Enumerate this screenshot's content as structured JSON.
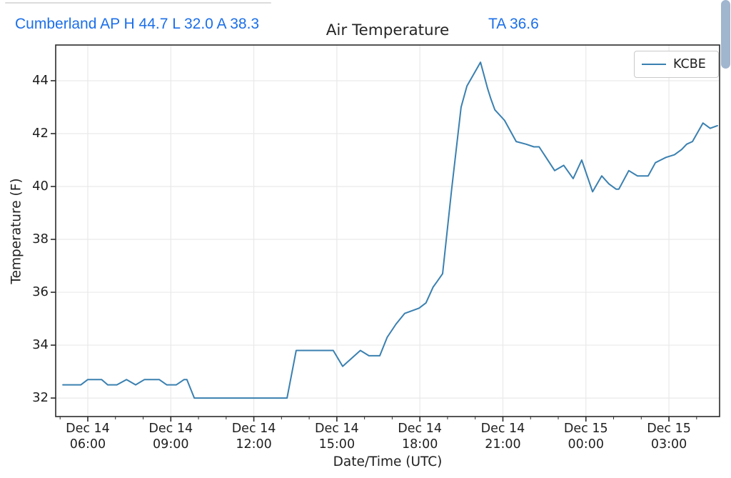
{
  "header": {
    "station_summary": "Cumberland AP H 44.7 L 32.0 A 38.3",
    "ta_value": "TA 36.6",
    "station": "Cumberland AP",
    "high": "44.7",
    "low": "32.0",
    "average": "38.3",
    "current_ta": "36.6",
    "accent_color": "#1b6fe8"
  },
  "chart_data": {
    "type": "line",
    "title": "Air Temperature",
    "xlabel": "Date/Time (UTC)",
    "ylabel": "Temperature (F)",
    "grid": true,
    "legend_position": "upper right",
    "legend_entries": [
      {
        "label": "KCBE",
        "color": "#3a80b0"
      }
    ],
    "ylim": [
      31.3,
      45.35
    ],
    "xlim_hours": [
      4.84,
      28.83
    ],
    "y_ticks": [
      32,
      34,
      36,
      38,
      40,
      42,
      44
    ],
    "x_major_ticks": [
      {
        "hour": 6,
        "line1": "Dec 14",
        "line2": "06:00"
      },
      {
        "hour": 9,
        "line1": "Dec 14",
        "line2": "09:00"
      },
      {
        "hour": 12,
        "line1": "Dec 14",
        "line2": "12:00"
      },
      {
        "hour": 15,
        "line1": "Dec 14",
        "line2": "15:00"
      },
      {
        "hour": 18,
        "line1": "Dec 14",
        "line2": "18:00"
      },
      {
        "hour": 21,
        "line1": "Dec 14",
        "line2": "21:00"
      },
      {
        "hour": 24,
        "line1": "Dec 15",
        "line2": "00:00"
      },
      {
        "hour": 27,
        "line1": "Dec 15",
        "line2": "03:00"
      }
    ],
    "x_minor_tick_hours": [
      5,
      7,
      8,
      10,
      11,
      13,
      14,
      16,
      17,
      19,
      20,
      22,
      23,
      25,
      26,
      28
    ],
    "series": [
      {
        "name": "KCBE",
        "color": "#3a80b0",
        "x_unit": "hours since Dec 14 00:00 UTC",
        "points": [
          [
            5.1,
            32.5
          ],
          [
            5.75,
            32.5
          ],
          [
            6.0,
            32.7
          ],
          [
            6.5,
            32.7
          ],
          [
            6.72,
            32.5
          ],
          [
            7.05,
            32.5
          ],
          [
            7.4,
            32.7
          ],
          [
            7.73,
            32.5
          ],
          [
            8.05,
            32.7
          ],
          [
            8.58,
            32.7
          ],
          [
            8.85,
            32.5
          ],
          [
            9.2,
            32.5
          ],
          [
            9.48,
            32.7
          ],
          [
            9.58,
            32.7
          ],
          [
            9.85,
            32.0
          ],
          [
            13.2,
            32.0
          ],
          [
            13.53,
            33.8
          ],
          [
            14.87,
            33.8
          ],
          [
            15.21,
            33.2
          ],
          [
            15.85,
            33.8
          ],
          [
            16.16,
            33.6
          ],
          [
            16.55,
            33.6
          ],
          [
            16.82,
            34.3
          ],
          [
            17.14,
            34.8
          ],
          [
            17.45,
            35.2
          ],
          [
            17.97,
            35.4
          ],
          [
            18.22,
            35.6
          ],
          [
            18.48,
            36.2
          ],
          [
            18.62,
            36.4
          ],
          [
            18.82,
            36.7
          ],
          [
            19.15,
            39.9
          ],
          [
            19.49,
            43.0
          ],
          [
            19.7,
            43.8
          ],
          [
            20.19,
            44.7
          ],
          [
            20.45,
            43.7
          ],
          [
            20.57,
            43.3
          ],
          [
            20.71,
            42.9
          ],
          [
            21.06,
            42.5
          ],
          [
            21.48,
            41.7
          ],
          [
            21.84,
            41.6
          ],
          [
            22.12,
            41.5
          ],
          [
            22.31,
            41.5
          ],
          [
            22.87,
            40.6
          ],
          [
            23.2,
            40.8
          ],
          [
            23.54,
            40.3
          ],
          [
            23.85,
            41.0
          ],
          [
            24.24,
            39.8
          ],
          [
            24.57,
            40.4
          ],
          [
            24.83,
            40.1
          ],
          [
            25.09,
            39.9
          ],
          [
            25.19,
            39.9
          ],
          [
            25.55,
            40.6
          ],
          [
            25.86,
            40.4
          ],
          [
            26.25,
            40.4
          ],
          [
            26.51,
            40.9
          ],
          [
            26.7,
            41.0
          ],
          [
            26.89,
            41.1
          ],
          [
            27.2,
            41.2
          ],
          [
            27.46,
            41.4
          ],
          [
            27.64,
            41.6
          ],
          [
            27.85,
            41.7
          ],
          [
            28.23,
            42.4
          ],
          [
            28.49,
            42.2
          ],
          [
            28.75,
            42.3
          ]
        ]
      }
    ],
    "style": {
      "grid_color": "#e9e9e9",
      "spine_color": "#2b2b2b",
      "tick_color": "#2b2b2b",
      "background": "#ffffff"
    }
  },
  "ui": {
    "divider_color": "#dcdcdc",
    "scrollbar_color": "#a0b5ce"
  }
}
